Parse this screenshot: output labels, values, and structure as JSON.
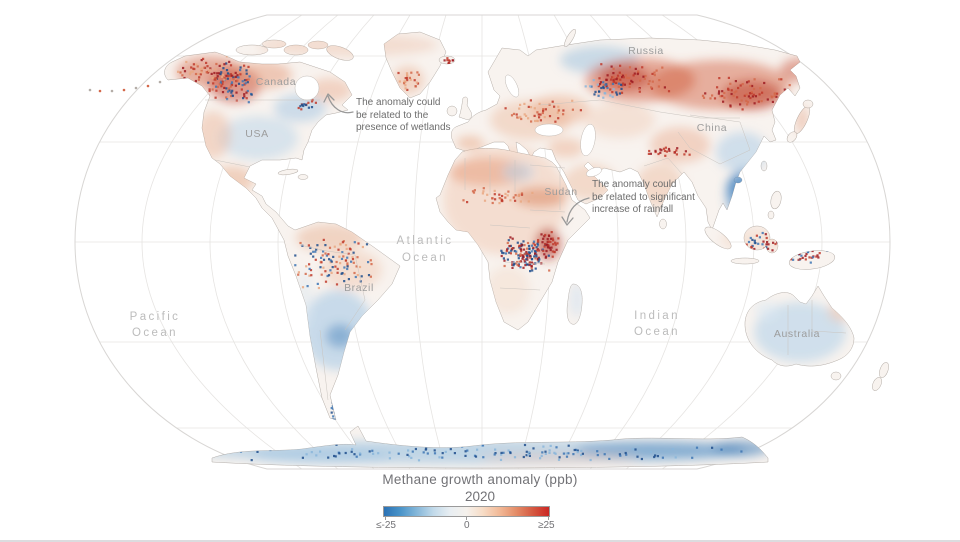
{
  "map": {
    "country_labels": [
      {
        "id": "canada",
        "label": "Canada"
      },
      {
        "id": "usa",
        "label": "USA"
      },
      {
        "id": "russia",
        "label": "Russia"
      },
      {
        "id": "china",
        "label": "China"
      },
      {
        "id": "sudan",
        "label": "Sudan"
      },
      {
        "id": "brazil",
        "label": "Brazil"
      },
      {
        "id": "australia",
        "label": "Australia"
      }
    ],
    "ocean_labels": [
      {
        "id": "pacific",
        "line1": "Pacific",
        "line2": "Ocean"
      },
      {
        "id": "atlantic",
        "line1": "Atlantic",
        "line2": "Ocean"
      },
      {
        "id": "indian",
        "line1": "Indian",
        "line2": "Ocean"
      }
    ],
    "annotations": [
      {
        "id": "wetlands",
        "line1": "The anomaly could",
        "line2": "be related to the",
        "line3": "presence of wetlands"
      },
      {
        "id": "rainfall",
        "line1": "The anomaly could",
        "line2": "be related to significant",
        "line3": "increase of rainfall"
      }
    ]
  },
  "legend": {
    "title": "Methane growth anomaly (ppb)",
    "year": "2020",
    "tick_min": "≤-25",
    "tick_zero": "0",
    "tick_max": "≥25",
    "gradient_stops": [
      "#2b72b5",
      "#4a94c9",
      "#85b7d9",
      "#c2daea",
      "#e8eef2",
      "#f5f1ec",
      "#f7dcc6",
      "#f2b997",
      "#e48d68",
      "#d55a42",
      "#cb2723"
    ]
  },
  "colors": {
    "strong_red": "#9e1b22",
    "red": "#c03a2c",
    "mid_red": "#d4684a",
    "light_red": "#e9a883",
    "strong_blue": "#1f4e8c",
    "blue": "#3d76b4",
    "light_blue": "#8ab6da",
    "land_base": "#f8f3ef",
    "coastline": "#b4ada7",
    "country_border": "#c9c4bf",
    "graticule": "#e6e4e2",
    "map_outline": "#d8d6d4",
    "arrow_gray": "#999999"
  }
}
